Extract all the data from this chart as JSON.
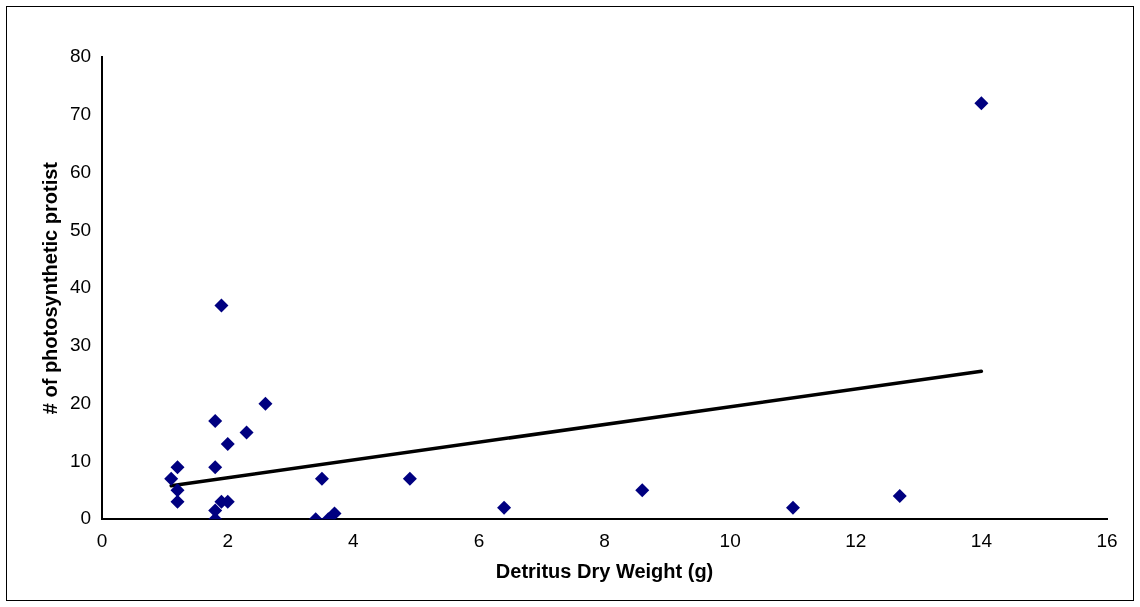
{
  "chart_data": {
    "type": "scatter",
    "xlabel": "Detritus Dry Weight (g)",
    "ylabel": "# of photosynthetic protist",
    "xlim": [
      0,
      16
    ],
    "xticks": [
      0,
      2,
      4,
      6,
      8,
      10,
      12,
      14,
      16
    ],
    "ylim": [
      0,
      80
    ],
    "yticks": [
      0,
      10,
      20,
      30,
      40,
      50,
      60,
      70,
      80
    ],
    "grid": false,
    "legend": false,
    "marker": "diamond",
    "series": [
      {
        "color": "#000080",
        "x": [
          1.1,
          1.2,
          1.2,
          1.2,
          1.8,
          1.8,
          1.8,
          1.8,
          1.9,
          2.0,
          1.9,
          2.0,
          2.3,
          2.6,
          3.4,
          3.5,
          3.6,
          3.7,
          4.9,
          6.4,
          8.6,
          11,
          12.7,
          14
        ],
        "values": [
          7,
          9,
          3,
          5,
          17,
          9,
          1.5,
          0,
          3,
          3,
          37,
          13,
          15,
          20,
          0,
          7,
          0,
          1,
          7,
          2,
          5,
          2,
          4,
          72
        ]
      },
      {
        "type": "line",
        "color": "#000000",
        "marker": "none",
        "x": [
          1.1,
          14
        ],
        "values": [
          5.8,
          25.6
        ]
      }
    ]
  }
}
